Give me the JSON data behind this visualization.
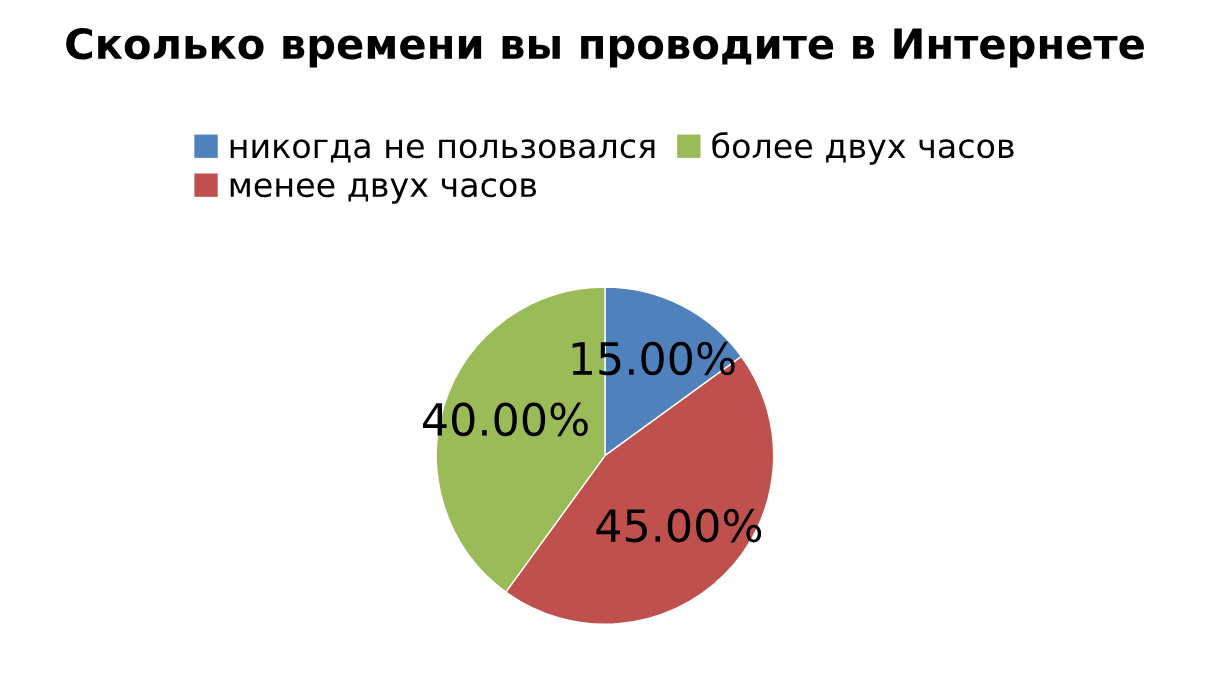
{
  "chart_data": {
    "type": "pie",
    "title": "Сколько времени вы проводите в Интернете",
    "categories": [
      "никогда не пользовался",
      "менее двух часов",
      "более двух часов"
    ],
    "values": [
      15,
      45,
      40
    ],
    "value_labels": [
      "15.00%",
      "45.00%",
      "40.00%"
    ],
    "colors": [
      "#4f81bd",
      "#c0504d",
      "#9bbb59"
    ],
    "legend": "top"
  }
}
